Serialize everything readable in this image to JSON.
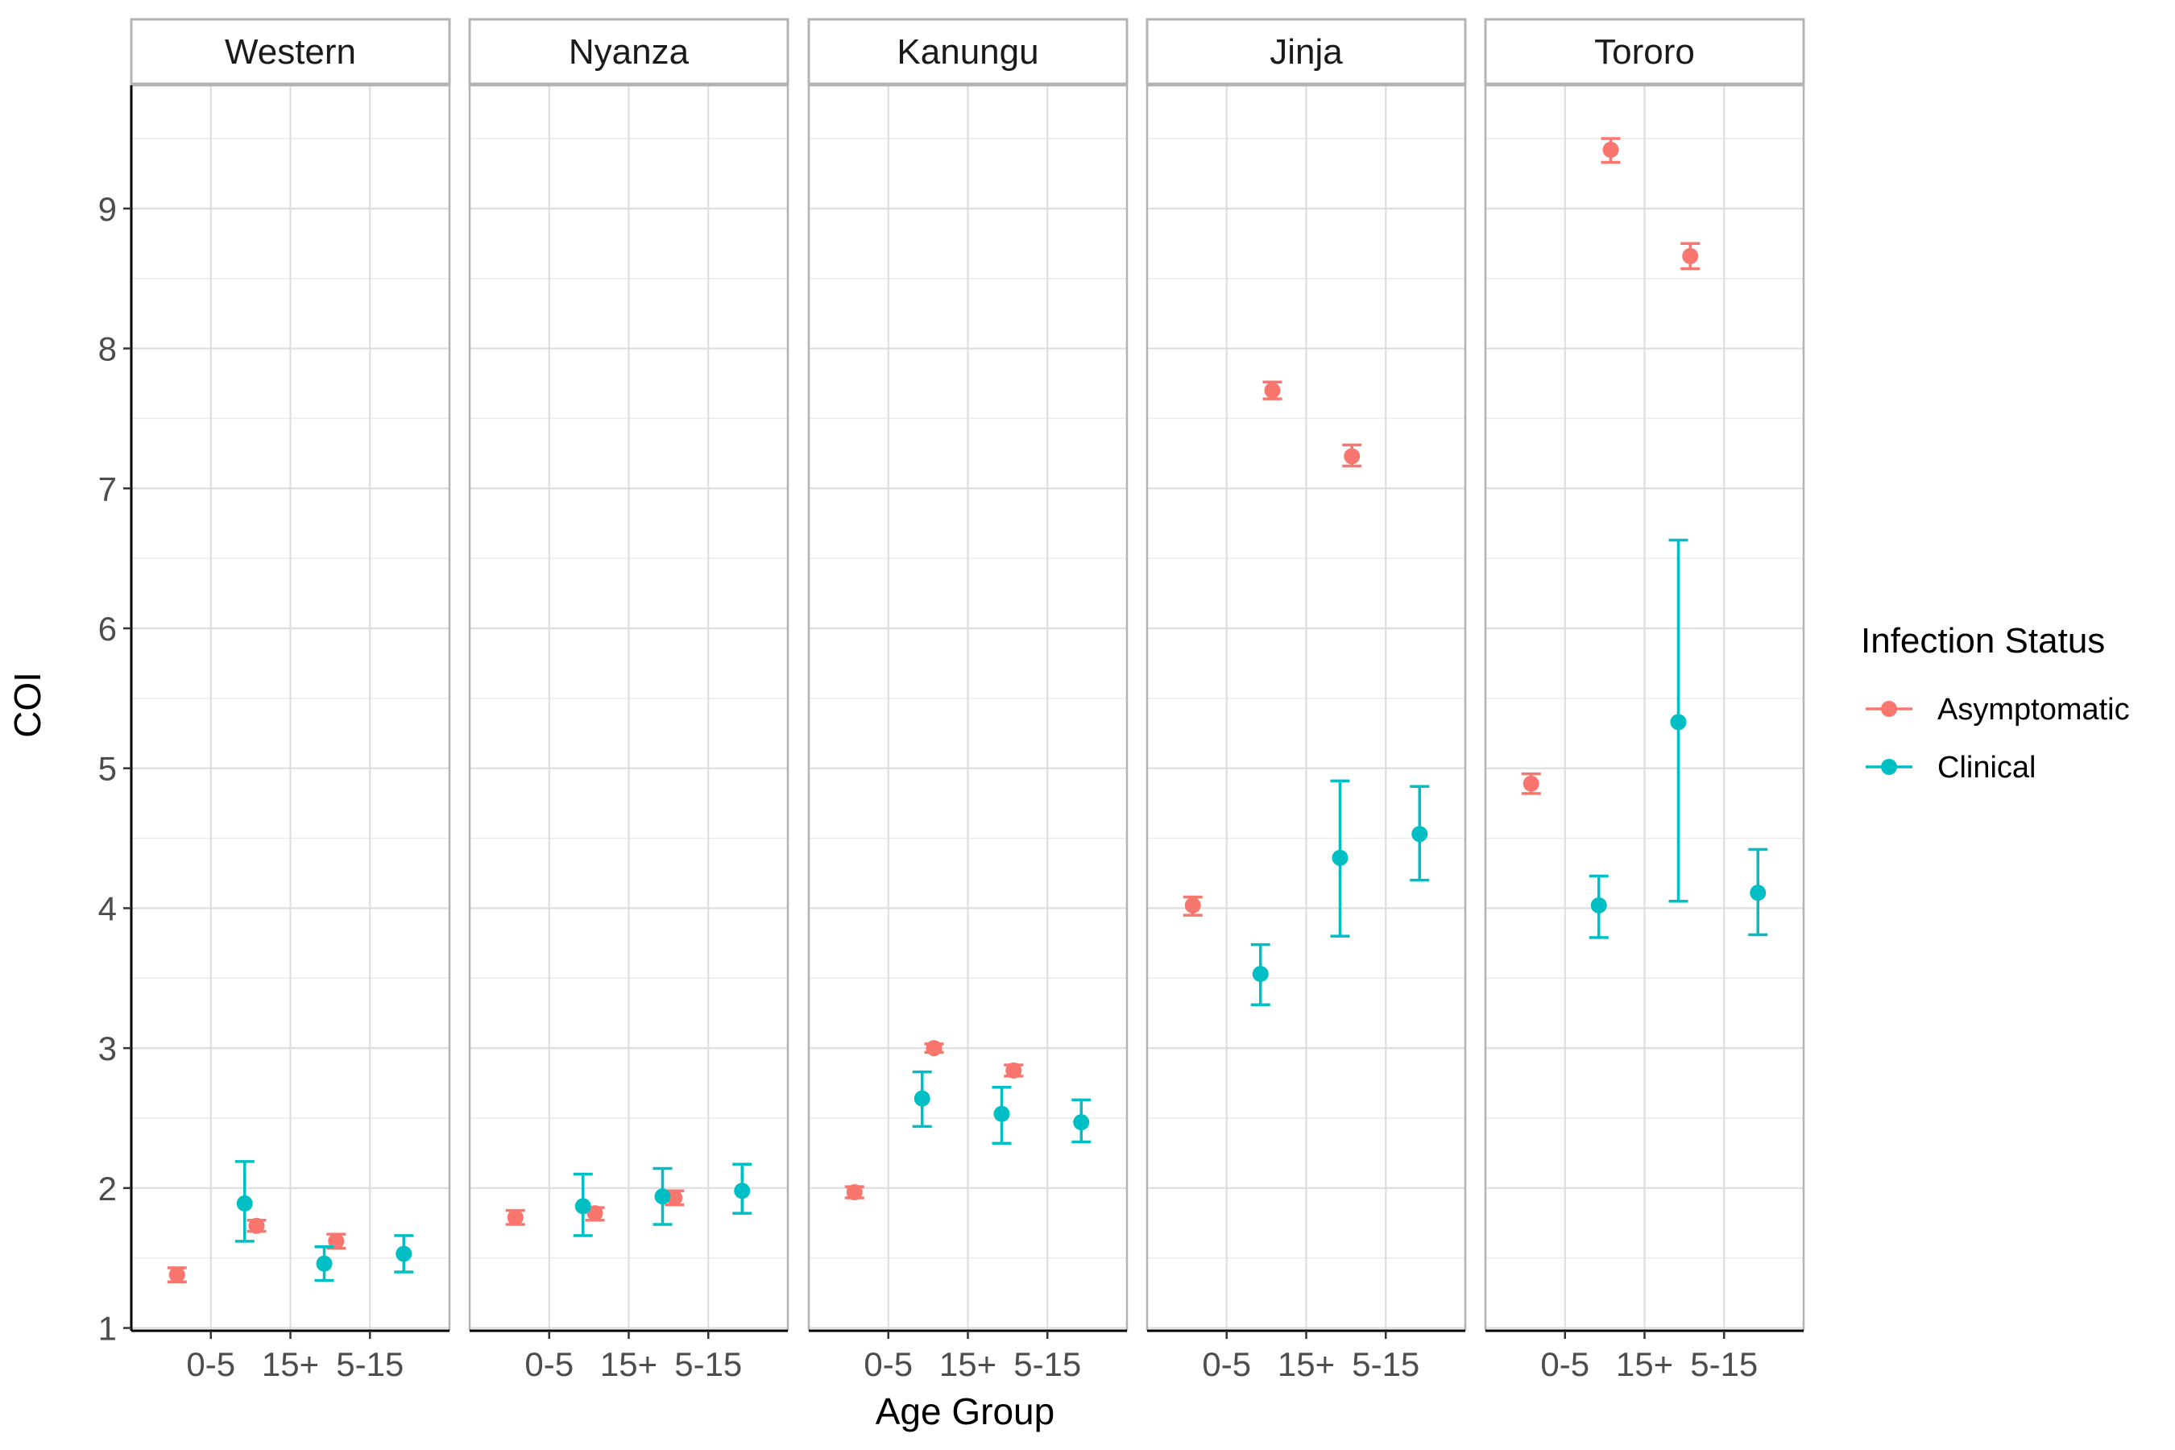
{
  "chart_data": {
    "type": "scatter",
    "facet_variable": "region",
    "panels": [
      "Western",
      "Nyanza",
      "Kanungu",
      "Jinja",
      "Tororo"
    ],
    "categories": [
      "0-5",
      "15+",
      "5-15"
    ],
    "xlabel": "Age Group",
    "ylabel": "COI",
    "ylim": [
      0.98,
      9.88
    ],
    "yticks": [
      1,
      2,
      3,
      4,
      5,
      6,
      7,
      8,
      9
    ],
    "grid": true,
    "legend": {
      "title": "Infection Status",
      "placement": "right"
    },
    "colors": {
      "Asymptomatic": "#F8766D",
      "Clinical": "#00BFC4"
    },
    "series": [
      {
        "name": "Asymptomatic",
        "data": {
          "Western": [
            {
              "x": "0-5",
              "y": 1.38,
              "lo": 1.33,
              "hi": 1.43
            },
            {
              "x": "15+",
              "y": 1.73,
              "lo": 1.69,
              "hi": 1.77
            },
            {
              "x": "5-15",
              "y": 1.62,
              "lo": 1.57,
              "hi": 1.67
            }
          ],
          "Nyanza": [
            {
              "x": "0-5",
              "y": 1.79,
              "lo": 1.74,
              "hi": 1.84
            },
            {
              "x": "15+",
              "y": 1.82,
              "lo": 1.77,
              "hi": 1.86
            },
            {
              "x": "5-15",
              "y": 1.93,
              "lo": 1.88,
              "hi": 1.98
            }
          ],
          "Kanungu": [
            {
              "x": "0-5",
              "y": 1.97,
              "lo": 1.93,
              "hi": 2.01
            },
            {
              "x": "15+",
              "y": 3.0,
              "lo": 2.97,
              "hi": 3.03
            },
            {
              "x": "5-15",
              "y": 2.84,
              "lo": 2.8,
              "hi": 2.88
            }
          ],
          "Jinja": [
            {
              "x": "0-5",
              "y": 4.02,
              "lo": 3.95,
              "hi": 4.08
            },
            {
              "x": "15+",
              "y": 7.7,
              "lo": 7.64,
              "hi": 7.76
            },
            {
              "x": "5-15",
              "y": 7.23,
              "lo": 7.16,
              "hi": 7.31
            }
          ],
          "Tororo": [
            {
              "x": "0-5",
              "y": 4.89,
              "lo": 4.82,
              "hi": 4.96
            },
            {
              "x": "15+",
              "y": 9.42,
              "lo": 9.33,
              "hi": 9.5
            },
            {
              "x": "5-15",
              "y": 8.66,
              "lo": 8.57,
              "hi": 8.75
            }
          ]
        }
      },
      {
        "name": "Clinical",
        "data": {
          "Western": [
            {
              "x": "0-5",
              "y": 1.89,
              "lo": 1.62,
              "hi": 2.19
            },
            {
              "x": "15+",
              "y": 1.46,
              "lo": 1.34,
              "hi": 1.58
            },
            {
              "x": "5-15",
              "y": 1.53,
              "lo": 1.4,
              "hi": 1.66
            }
          ],
          "Nyanza": [
            {
              "x": "0-5",
              "y": 1.87,
              "lo": 1.66,
              "hi": 2.1
            },
            {
              "x": "15+",
              "y": 1.94,
              "lo": 1.74,
              "hi": 2.14
            },
            {
              "x": "5-15",
              "y": 1.98,
              "lo": 1.82,
              "hi": 2.17
            }
          ],
          "Kanungu": [
            {
              "x": "0-5",
              "y": 2.64,
              "lo": 2.44,
              "hi": 2.83
            },
            {
              "x": "15+",
              "y": 2.53,
              "lo": 2.32,
              "hi": 2.72
            },
            {
              "x": "5-15",
              "y": 2.47,
              "lo": 2.33,
              "hi": 2.63
            }
          ],
          "Jinja": [
            {
              "x": "0-5",
              "y": 3.53,
              "lo": 3.31,
              "hi": 3.74
            },
            {
              "x": "15+",
              "y": 4.36,
              "lo": 3.8,
              "hi": 4.91
            },
            {
              "x": "5-15",
              "y": 4.53,
              "lo": 4.2,
              "hi": 4.87
            }
          ],
          "Tororo": [
            {
              "x": "0-5",
              "y": 4.02,
              "lo": 3.79,
              "hi": 4.23
            },
            {
              "x": "15+",
              "y": 5.33,
              "lo": 4.05,
              "hi": 6.63
            },
            {
              "x": "5-15",
              "y": 4.11,
              "lo": 3.81,
              "hi": 4.42
            }
          ]
        }
      }
    ]
  }
}
